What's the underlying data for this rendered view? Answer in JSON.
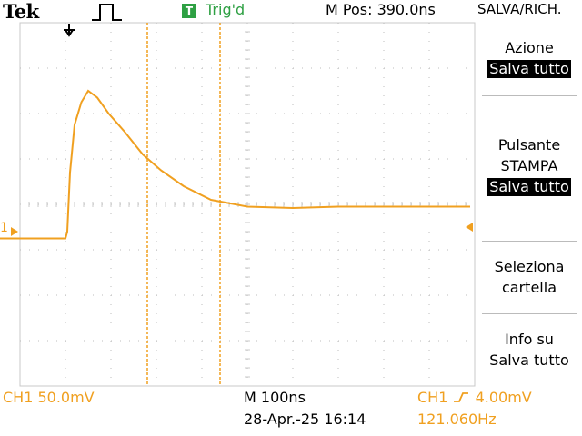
{
  "header": {
    "brand": "Tek",
    "trigger_badge": "T",
    "trigger_status": "Trig'd",
    "m_pos": "M Pos: 390.0ns",
    "menu_title": "SALVA/RICH."
  },
  "side_menu": {
    "action": {
      "label": "Azione",
      "value": "Salva tutto"
    },
    "print_button": {
      "label_line1": "Pulsante",
      "label_line2": "STAMPA",
      "value": "Salva tutto"
    },
    "select_folder": {
      "line1": "Seleziona",
      "line2": "cartella"
    },
    "info": {
      "line1": "Info su",
      "line2": "Salva tutto"
    }
  },
  "footer": {
    "ch1_scale": "CH1  50.0mV",
    "timebase": "M 100ns",
    "datetime": "28-Apr.-25 16:14",
    "trigger_source": "CH1",
    "trigger_level": "4.00mV",
    "frequency": "121.060Hz"
  },
  "display": {
    "ground_marker": "1",
    "trace_color": "#f0a020",
    "trigger_color": "#2ea043",
    "cursor_times_div": [
      2.8,
      4.4
    ],
    "waveform": {
      "x_div": [
        0,
        1.0,
        1.04,
        1.1,
        1.2,
        1.35,
        1.5,
        1.7,
        1.95,
        2.3,
        2.7,
        3.1,
        3.6,
        4.2,
        5.0,
        6.0,
        7.0,
        8.0,
        9.0,
        9.9
      ],
      "y_div": [
        -0.75,
        -0.75,
        -0.6,
        0.7,
        1.75,
        2.25,
        2.5,
        2.35,
        2.0,
        1.6,
        1.1,
        0.75,
        0.4,
        0.1,
        -0.05,
        -0.08,
        -0.05,
        -0.05,
        -0.05,
        -0.05
      ]
    }
  }
}
